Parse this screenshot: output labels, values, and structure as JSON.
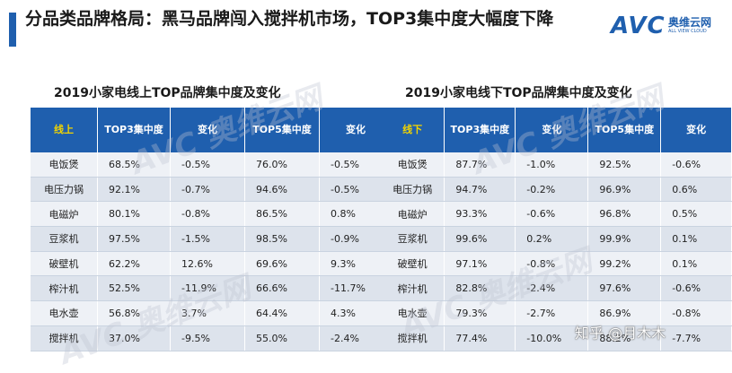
{
  "slide": {
    "title": "分品类品牌格局：黑马品牌闯入搅拌机市场，TOP3集中度大幅度下降"
  },
  "logo": {
    "mark": "AVC",
    "cn": "奥维云网",
    "en": "ALL VIEW CLOUD"
  },
  "watermark": {
    "text": "AVC 奥维云网"
  },
  "online_table": {
    "title": "2019小家电线上TOP品牌集中度及变化",
    "headers": [
      "线上",
      "TOP3集中度",
      "变化",
      "TOP5集中度",
      "变化"
    ],
    "rows": [
      [
        "电饭煲",
        "68.5%",
        "-0.5%",
        "76.0%",
        "-0.5%"
      ],
      [
        "电压力锅",
        "92.1%",
        "-0.7%",
        "94.6%",
        "-0.5%"
      ],
      [
        "电磁炉",
        "80.1%",
        "-0.8%",
        "86.5%",
        "0.8%"
      ],
      [
        "豆浆机",
        "97.5%",
        "-1.5%",
        "98.5%",
        "-0.9%"
      ],
      [
        "破壁机",
        "62.2%",
        "12.6%",
        "69.6%",
        "9.3%"
      ],
      [
        "榨汁机",
        "52.5%",
        "-11.9%",
        "66.6%",
        "-11.7%"
      ],
      [
        "电水壶",
        "56.8%",
        "3.7%",
        "64.4%",
        "4.3%"
      ],
      [
        "搅拌机",
        "37.0%",
        "-9.5%",
        "55.0%",
        "-2.4%"
      ]
    ]
  },
  "offline_table": {
    "title": "2019小家电线下TOP品牌集中度及变化",
    "headers": [
      "线下",
      "TOP3集中度",
      "变化",
      "TOP5集中度",
      "变化"
    ],
    "rows": [
      [
        "电饭煲",
        "87.7%",
        "-1.0%",
        "92.5%",
        "-0.6%"
      ],
      [
        "电压力锅",
        "94.7%",
        "-0.2%",
        "96.9%",
        "0.6%"
      ],
      [
        "电磁炉",
        "93.3%",
        "-0.6%",
        "96.8%",
        "0.5%"
      ],
      [
        "豆浆机",
        "99.6%",
        "0.2%",
        "99.9%",
        "0.1%"
      ],
      [
        "破壁机",
        "97.1%",
        "-0.8%",
        "99.2%",
        "0.1%"
      ],
      [
        "榨汁机",
        "82.8%",
        "-2.4%",
        "97.6%",
        "-0.6%"
      ],
      [
        "电水壶",
        "79.3%",
        "-2.7%",
        "86.9%",
        "-0.8%"
      ],
      [
        "搅拌机",
        "77.4%",
        "-10.0%",
        "88.2%",
        "-7.7%"
      ]
    ]
  },
  "footer": {
    "zhihu_credit": "知乎 @月木木"
  },
  "colors": {
    "header_bg": "#1f5fae",
    "first_header_text": "#f2d400",
    "accent": "#1f5fae"
  }
}
